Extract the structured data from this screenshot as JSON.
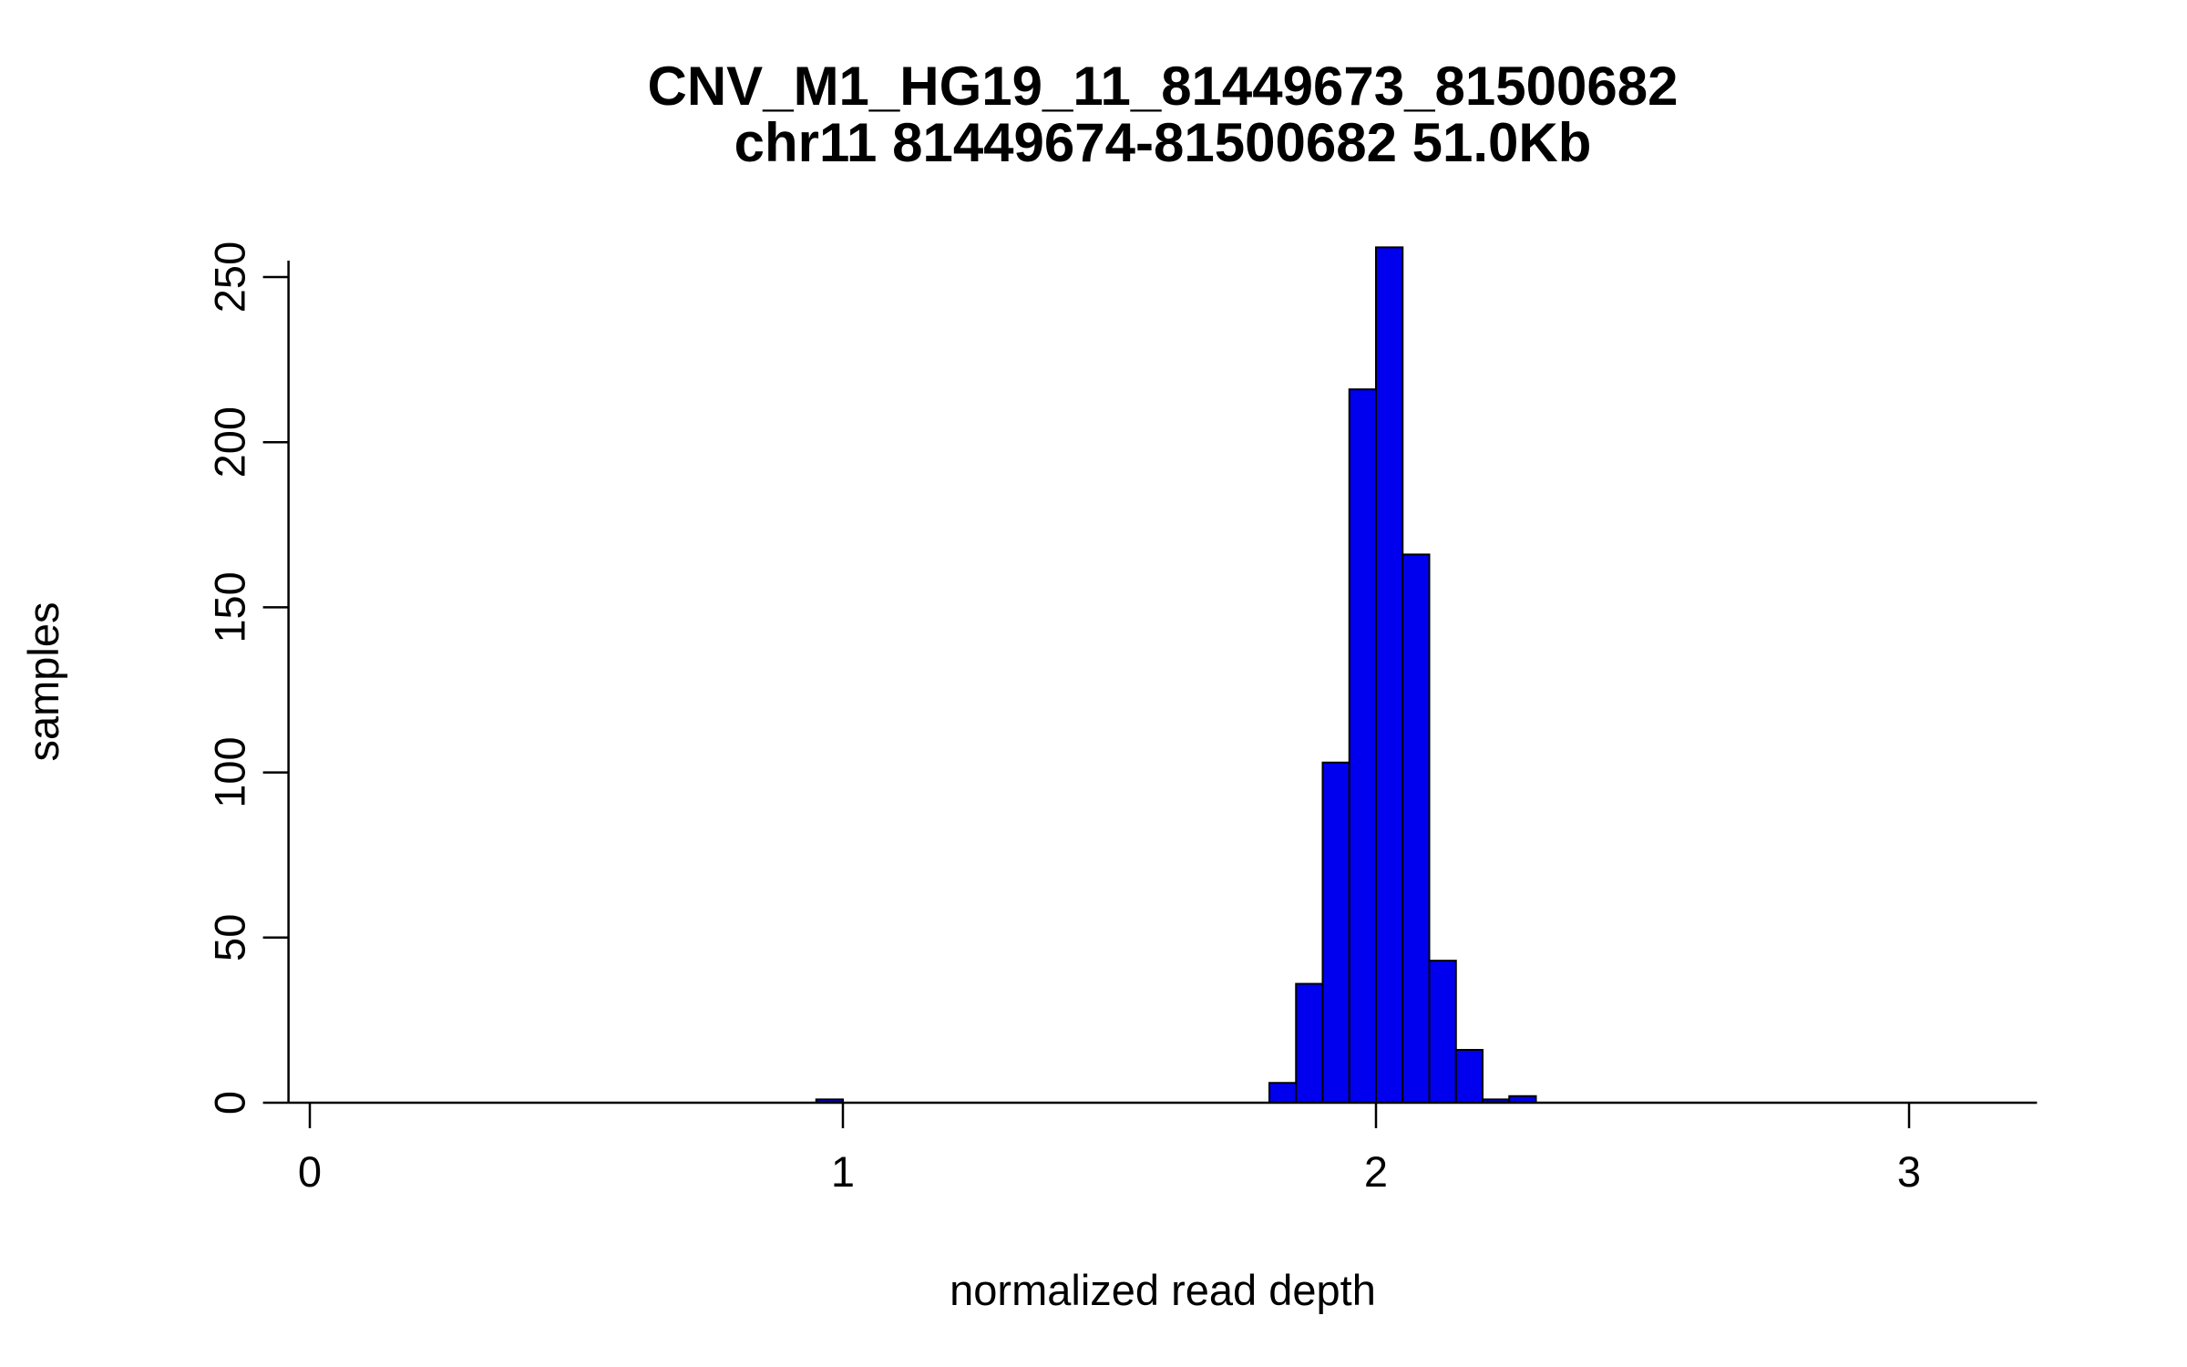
{
  "chart_data": {
    "type": "bar",
    "subtype": "histogram",
    "title": "CNV_M1_HG19_11_81449673_81500682",
    "subtitle": "chr11 81449674-81500682 51.0Kb",
    "xlabel": "normalized read depth",
    "ylabel": "samples",
    "grid": false,
    "legend_position": "none",
    "bar_color": "#0000ee",
    "bar_border_color": "#000000",
    "axis_color": "#000000",
    "xlim": [
      -0.04,
      3.24
    ],
    "ylim": [
      0,
      260
    ],
    "x_ticks": [
      0,
      1,
      2,
      3
    ],
    "y_ticks": [
      0,
      50,
      100,
      150,
      200,
      250
    ],
    "bin_width": 0.05,
    "bins": [
      {
        "x0": 0.95,
        "x1": 1.0,
        "count": 1
      },
      {
        "x0": 1.8,
        "x1": 1.85,
        "count": 6
      },
      {
        "x0": 1.85,
        "x1": 1.9,
        "count": 36
      },
      {
        "x0": 1.9,
        "x1": 1.95,
        "count": 103
      },
      {
        "x0": 1.95,
        "x1": 2.0,
        "count": 216
      },
      {
        "x0": 2.0,
        "x1": 2.05,
        "count": 259
      },
      {
        "x0": 2.05,
        "x1": 2.1,
        "count": 166
      },
      {
        "x0": 2.1,
        "x1": 2.15,
        "count": 43
      },
      {
        "x0": 2.15,
        "x1": 2.2,
        "count": 16
      },
      {
        "x0": 2.2,
        "x1": 2.25,
        "count": 1
      },
      {
        "x0": 2.25,
        "x1": 2.3,
        "count": 2
      }
    ]
  }
}
